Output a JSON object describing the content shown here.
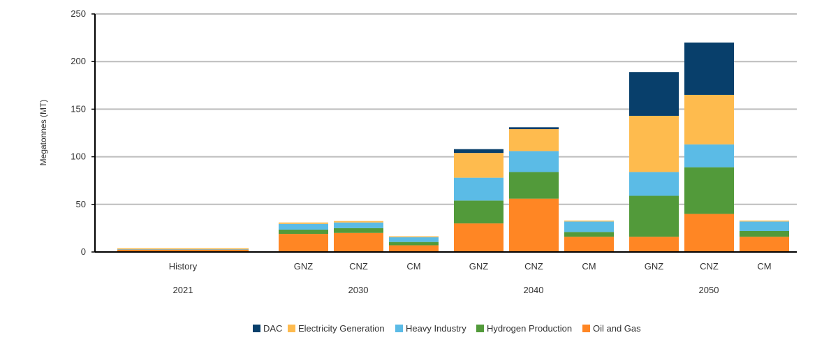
{
  "chart_data": {
    "type": "bar",
    "stacked": true,
    "ylabel": "Megatonnes (MT)",
    "ylim": [
      0,
      250
    ],
    "yticks": [
      0,
      50,
      100,
      150,
      200,
      250
    ],
    "grid": true,
    "legend_position": "bottom-center",
    "groups": [
      {
        "label": "2021",
        "categories": [
          "History"
        ]
      },
      {
        "label": "2030",
        "categories": [
          "GNZ",
          "CNZ",
          "CM"
        ]
      },
      {
        "label": "2040",
        "categories": [
          "GNZ",
          "CNZ",
          "CM"
        ]
      },
      {
        "label": "2050",
        "categories": [
          "GNZ",
          "CNZ",
          "CM"
        ]
      }
    ],
    "categories": [
      "History",
      "GNZ",
      "CNZ",
      "CM",
      "GNZ",
      "CNZ",
      "CM",
      "GNZ",
      "CNZ",
      "CM"
    ],
    "series": [
      {
        "name": "Oil and Gas",
        "color": "#FF8624",
        "values": [
          2.5,
          19,
          20,
          7,
          30,
          56,
          16,
          16,
          40,
          16
        ]
      },
      {
        "name": "Hydrogen Production",
        "color": "#529A3A",
        "values": [
          0,
          4.5,
          5,
          3.5,
          24,
          28,
          5,
          43,
          49,
          6
        ]
      },
      {
        "name": "Heavy Industry",
        "color": "#5BBBE6",
        "values": [
          0.5,
          6,
          6,
          5,
          24,
          22,
          11,
          25,
          24,
          10
        ]
      },
      {
        "name": "Electricity Generation",
        "color": "#FEBB4E",
        "values": [
          1,
          1.5,
          1.5,
          1,
          26,
          23,
          1,
          59,
          52,
          1
        ]
      },
      {
        "name": "DAC",
        "color": "#083F6B",
        "values": [
          0,
          0,
          0,
          0,
          4,
          2,
          0,
          46,
          55,
          0
        ]
      }
    ],
    "legend_order": [
      "DAC",
      "Electricity Generation",
      "Heavy Industry",
      "Hydrogen Production",
      "Oil and Gas"
    ]
  }
}
